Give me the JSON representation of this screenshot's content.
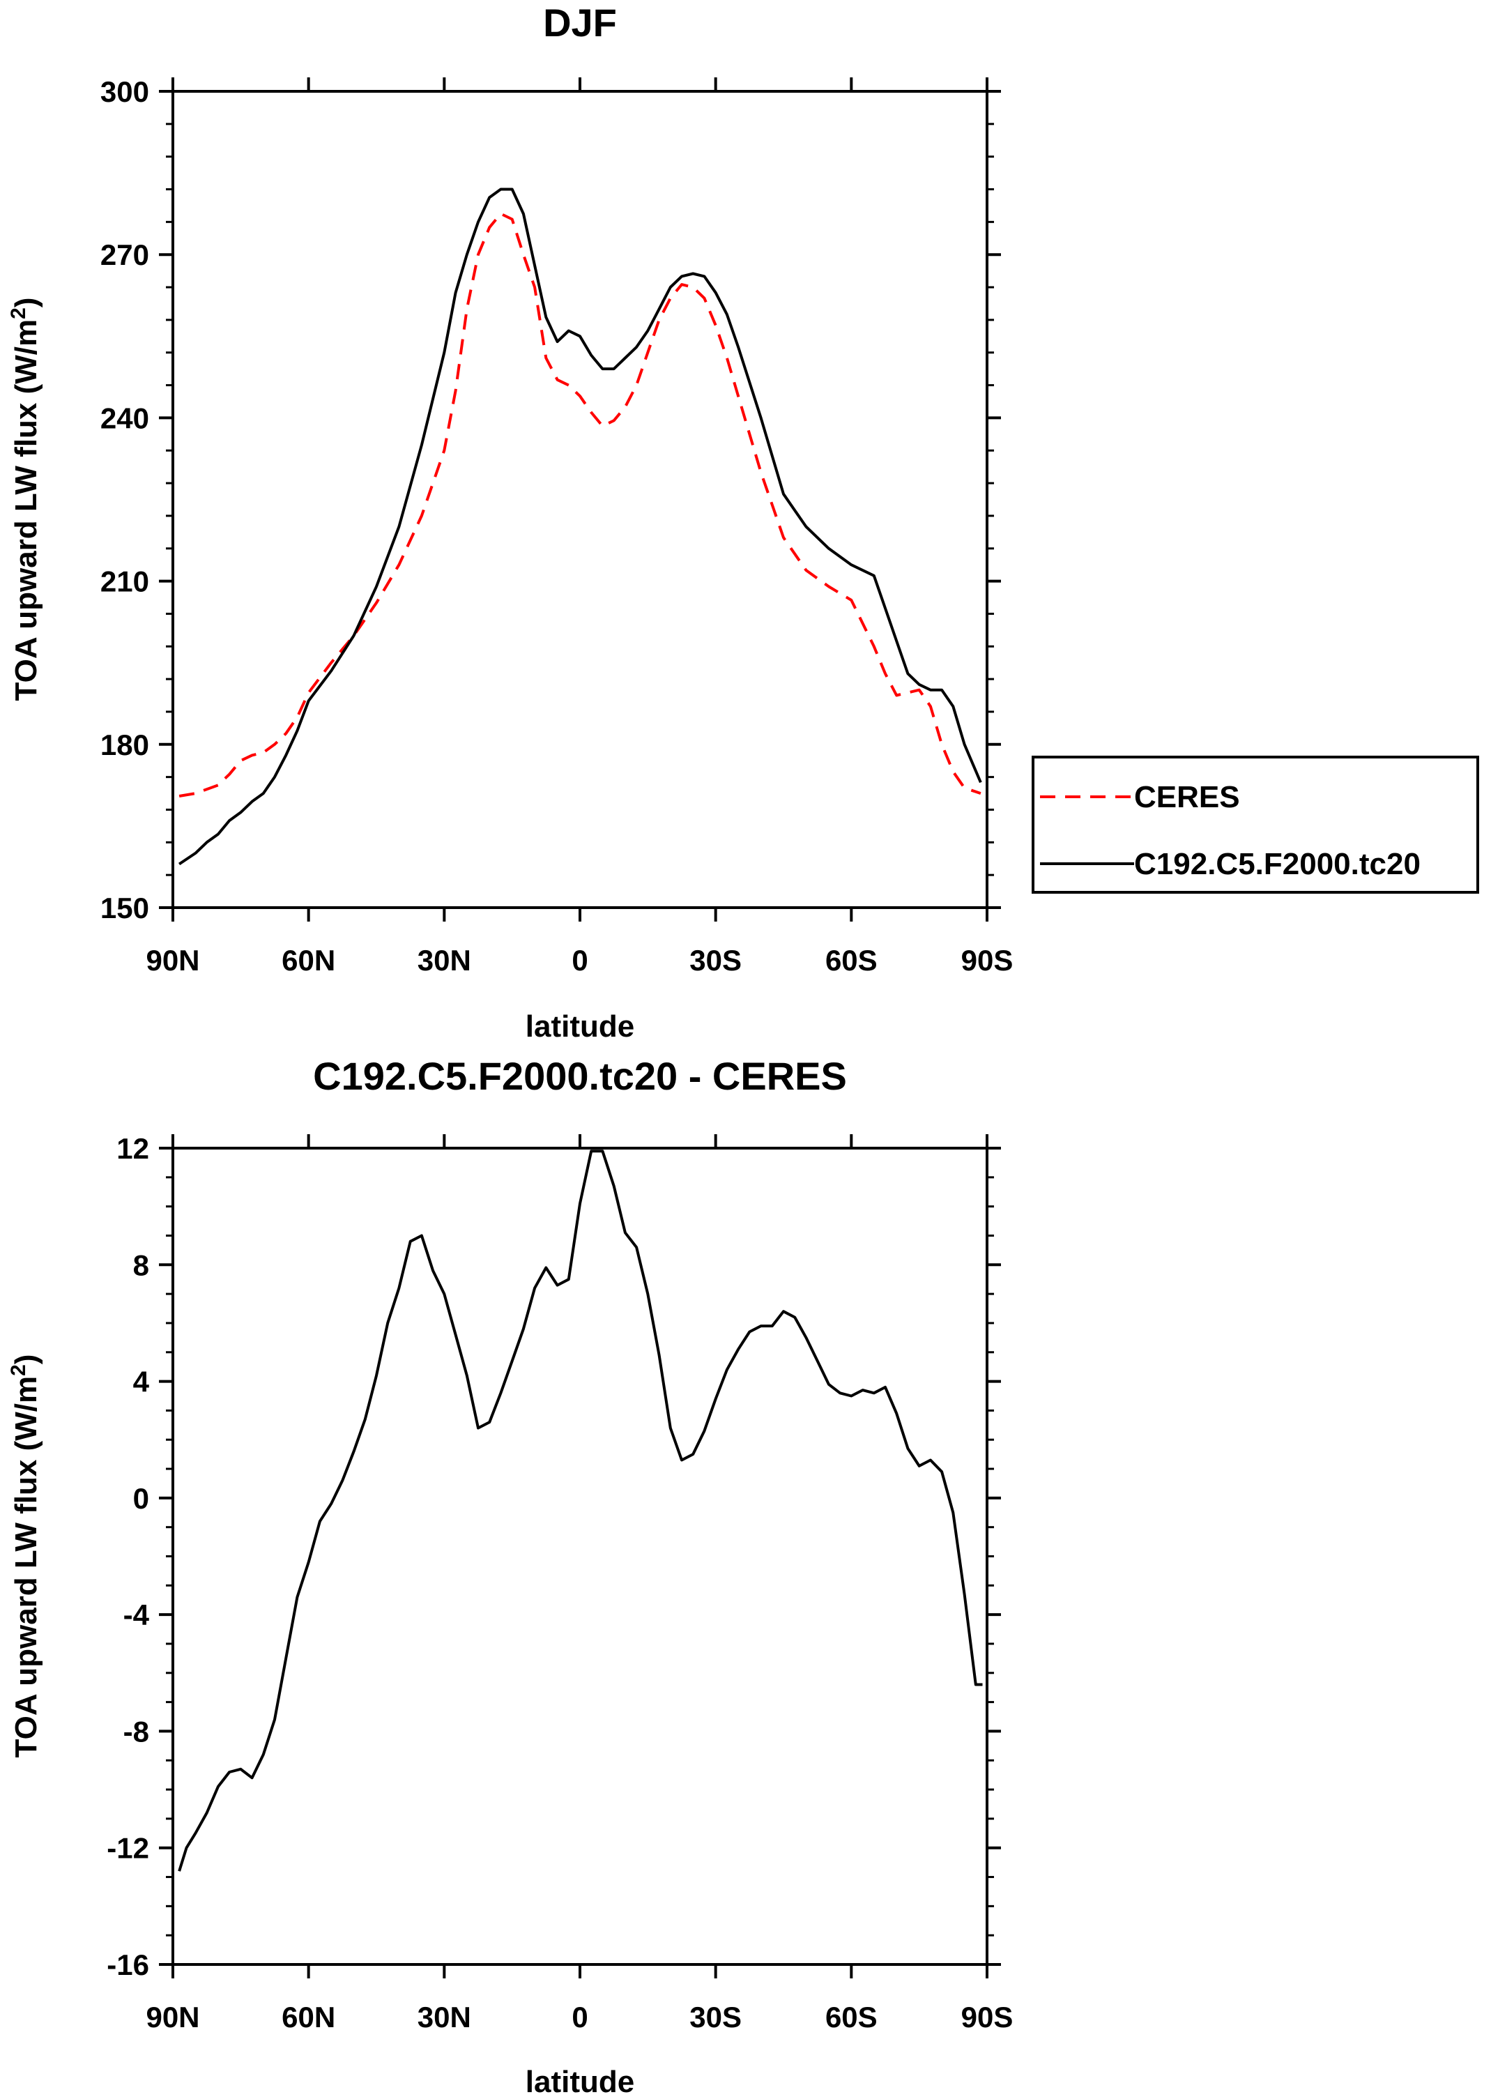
{
  "chart_data": [
    {
      "type": "line",
      "title": "DJF",
      "xlabel": "latitude",
      "ylabel": "TOA upward LW flux (W/m",
      "ylabel_sup": "2",
      "ylabel_close": ")",
      "xlim": [
        90,
        -90
      ],
      "ylim": [
        150,
        300
      ],
      "x_ticks": [
        90,
        60,
        30,
        0,
        -30,
        -60,
        -90
      ],
      "x_tick_labels": [
        "90N",
        "60N",
        "30N",
        "0",
        "30S",
        "60S",
        "90S"
      ],
      "y_ticks": [
        150,
        180,
        210,
        240,
        270,
        300
      ],
      "y_tick_labels": [
        "150",
        "180",
        "210",
        "240",
        "270",
        "300"
      ],
      "legend": {
        "placement": "right",
        "entries": [
          "CERES",
          "C192.C5.F2000.tc20"
        ]
      },
      "series": [
        {
          "name": "CERES",
          "color": "#ff0000",
          "dash": "dashed",
          "x": [
            88.6,
            85,
            80,
            77.5,
            75,
            72.5,
            70,
            67.5,
            65,
            62.5,
            60,
            55,
            50,
            45,
            40,
            35,
            30,
            27.5,
            25,
            22.5,
            20,
            17.5,
            15,
            12.5,
            10,
            7.5,
            5,
            2.5,
            0,
            -2.5,
            -5,
            -7.5,
            -10,
            -12.5,
            -15,
            -17.5,
            -20,
            -22.5,
            -25,
            -27.5,
            -30,
            -32.5,
            -35,
            -40,
            -45,
            -50,
            -55,
            -60,
            -65,
            -67.5,
            -70,
            -72.5,
            -75,
            -77.5,
            -80,
            -82.5,
            -85,
            -88.6
          ],
          "values": [
            170.5,
            171,
            172.5,
            174.5,
            177,
            178,
            178.5,
            180,
            182,
            185,
            189.5,
            195,
            200,
            206,
            213,
            222,
            234,
            245,
            260,
            270,
            275,
            277.5,
            276.5,
            270,
            264,
            251,
            247,
            246,
            244,
            241,
            238.5,
            239.5,
            242,
            246,
            252,
            258,
            262,
            264.5,
            264,
            262,
            257,
            251,
            244,
            230,
            218,
            212,
            209,
            206.5,
            198,
            193,
            189,
            189.5,
            190,
            187,
            180,
            175,
            172,
            171
          ]
        },
        {
          "name": "C192.C5.F2000.tc20",
          "color": "#000000",
          "dash": "solid",
          "x": [
            88.6,
            85,
            82.5,
            80,
            77.5,
            75,
            72.5,
            70,
            67.5,
            65,
            62.5,
            60,
            55,
            50,
            45,
            40,
            35,
            30,
            27.5,
            25,
            22.5,
            20,
            17.5,
            15,
            12.5,
            10,
            7.5,
            5,
            2.5,
            0,
            -2.5,
            -5,
            -7.5,
            -10,
            -12.5,
            -15,
            -17.5,
            -20,
            -22.5,
            -25,
            -27.5,
            -30,
            -32.5,
            -35,
            -40,
            -45,
            -50,
            -55,
            -60,
            -65,
            -67.5,
            -70,
            -72.5,
            -75,
            -77.5,
            -80,
            -82.5,
            -85,
            -88.6
          ],
          "values": [
            158,
            160,
            162,
            163.5,
            166,
            167.5,
            169.5,
            171,
            174,
            178,
            182.5,
            188,
            193.5,
            200,
            209,
            220,
            235,
            252,
            263,
            270,
            276,
            280.5,
            282,
            282,
            277.5,
            268,
            258.5,
            254,
            256,
            255,
            251.5,
            249,
            249,
            251,
            253,
            256,
            260,
            264,
            266,
            266.5,
            266,
            263,
            259,
            253,
            240,
            226,
            220,
            216,
            213,
            211,
            205,
            199,
            193,
            191,
            190,
            190,
            187,
            180,
            173
          ]
        }
      ]
    },
    {
      "type": "line",
      "title": "C192.C5.F2000.tc20 - CERES",
      "xlabel": "latitude",
      "ylabel": "TOA upward LW flux (W/m",
      "ylabel_sup": "2",
      "ylabel_close": ")",
      "xlim": [
        90,
        -90
      ],
      "ylim": [
        -16,
        12
      ],
      "x_ticks": [
        90,
        60,
        30,
        0,
        -30,
        -60,
        -90
      ],
      "x_tick_labels": [
        "90N",
        "60N",
        "30N",
        "0",
        "30S",
        "60S",
        "90S"
      ],
      "y_ticks": [
        -16,
        -12,
        -8,
        -4,
        0,
        4,
        8,
        12
      ],
      "y_tick_labels": [
        "-16",
        "-12",
        "-8",
        "-4",
        "0",
        "4",
        "8",
        "12"
      ],
      "series": [
        {
          "name": "C192.C5.F2000.tc20 - CERES",
          "color": "#000000",
          "dash": "solid",
          "x": [
            88.6,
            87,
            85,
            82.5,
            80,
            77.5,
            75,
            72.5,
            70,
            67.5,
            65,
            62.5,
            60,
            57.5,
            55,
            52.5,
            50,
            47.5,
            45,
            42.5,
            40,
            37.5,
            35,
            32.5,
            30,
            27.5,
            25,
            22.5,
            20,
            17.5,
            15,
            12.5,
            10,
            7.5,
            5,
            2.5,
            0,
            -2.5,
            -5,
            -7.5,
            -10,
            -12.5,
            -15,
            -17.5,
            -20,
            -22.5,
            -25,
            -27.5,
            -30,
            -32.5,
            -35,
            -37.5,
            -40,
            -42.5,
            -45,
            -47.5,
            -50,
            -52.5,
            -55,
            -57.5,
            -60,
            -62.5,
            -65,
            -67.5,
            -70,
            -72.5,
            -75,
            -77.5,
            -80,
            -82.5,
            -85,
            -87.5,
            -89
          ],
          "values": [
            -12.8,
            -12,
            -11.5,
            -10.8,
            -9.9,
            -9.4,
            -9.3,
            -9.6,
            -8.8,
            -7.6,
            -5.5,
            -3.4,
            -2.2,
            -0.8,
            -0.2,
            0.6,
            1.6,
            2.7,
            4.2,
            6,
            7.2,
            8.8,
            9,
            7.8,
            7,
            5.6,
            4.2,
            2.4,
            2.6,
            3.6,
            4.7,
            5.8,
            7.2,
            7.9,
            7.3,
            7.5,
            10.1,
            11.9,
            11.9,
            10.7,
            9.1,
            8.6,
            7,
            4.9,
            2.4,
            1.3,
            1.5,
            2.3,
            3.4,
            4.4,
            5.1,
            5.7,
            5.9,
            5.9,
            6.4,
            6.2,
            5.5,
            4.7,
            3.9,
            3.6,
            3.5,
            3.7,
            3.6,
            3.8,
            2.9,
            1.7,
            1.1,
            1.3,
            0.9,
            -0.5,
            -3.3,
            -6.4,
            -6.4
          ]
        }
      ]
    }
  ]
}
